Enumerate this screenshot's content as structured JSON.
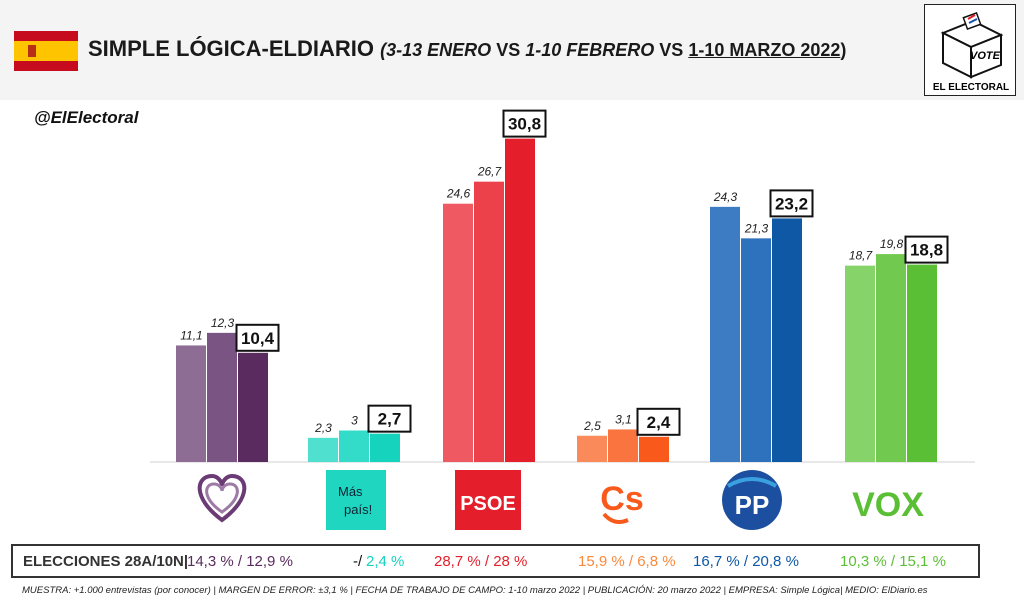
{
  "header": {
    "pollster": "SIMPLE LÓGICA-ELDIARIO",
    "paren_open": "(",
    "dates_1": "3-13 ENERO",
    "vs1": "VS",
    "dates_2": "1-10 FEBRERO",
    "vs2": "VS",
    "dates_3": "1-10 MARZO 2022",
    "paren_close": ")"
  },
  "logo": {
    "box_text": "VOTE",
    "name": "EL ELECTORAL"
  },
  "handle": "@ElElectoral",
  "chart_data": {
    "type": "bar",
    "categories": [
      "Unidas Podemos",
      "Más País",
      "PSOE",
      "Cs",
      "PP",
      "VOX"
    ],
    "series": [
      {
        "values": [
          11.1,
          2.3,
          24.6,
          2.5,
          24.3,
          18.7
        ],
        "labels": [
          "11,1",
          "2,3",
          "24,6",
          "2,5",
          "24,3",
          "18,7"
        ]
      },
      {
        "values": [
          12.3,
          3.0,
          26.7,
          3.1,
          21.3,
          19.8
        ],
        "labels": [
          "12,3",
          "3",
          "26,7",
          "3,1",
          "21,3",
          "19,8"
        ]
      },
      {
        "values": [
          10.4,
          2.7,
          30.8,
          2.4,
          23.2,
          18.8
        ],
        "labels": [
          "10,4",
          "2,7",
          "30,8",
          "2,4",
          "23,2",
          "18,8"
        ]
      }
    ],
    "colors": [
      [
        "#8d6d93",
        "#7a5483",
        "#5a2b5e"
      ],
      [
        "#4fe0cf",
        "#33dcc8",
        "#15d3bd"
      ],
      [
        "#ef5a62",
        "#ec404a",
        "#e41f2b"
      ],
      [
        "#fb8a5a",
        "#fa7440",
        "#f95a1c"
      ],
      [
        "#3d7cc2",
        "#2e72bd",
        "#0e58a6"
      ],
      [
        "#86d369",
        "#71c94f",
        "#5bbf36"
      ]
    ],
    "party_logos": [
      "heart-logo",
      "mas-pais-logo",
      "psoe-logo",
      "cs-logo",
      "pp-logo",
      "vox-logo"
    ]
  },
  "party_logo_text": {
    "mas_pais": "Más",
    "mas_pais_2": "país!",
    "psoe": "PSOE",
    "cs": "Cs",
    "pp": "PP",
    "vox": "VOX"
  },
  "legend": {
    "label": "ELECCIONES 28A/10N|",
    "items": [
      {
        "text": "14,3 % / 12,9 %",
        "color": "#5a2b5e"
      },
      {
        "text": "-/",
        "color": "#111111"
      },
      {
        "text": "2,4 %",
        "color": "#15d3bd"
      },
      {
        "text": "28,7  % / 28 %",
        "color": "#e41f2b"
      },
      {
        "text": "15,9 % / 6,8 %",
        "color": "#f98a3c"
      },
      {
        "text": "16,7 % / 20,8 %",
        "color": "#0e58a6"
      },
      {
        "text": "10,3 % / 15,1 %",
        "color": "#5bbf36"
      }
    ]
  },
  "footer": "MUESTRA: +1.000 entrevistas (por conocer) | MARGEN DE ERROR: ±3,1 % | FECHA DE TRABAJO DE CAMPO: 1-10 marzo 2022 | PUBLICACIÓN: 20 marzo 2022 | EMPRESA: Simple Lógica| MEDIO: ElDiario.es"
}
